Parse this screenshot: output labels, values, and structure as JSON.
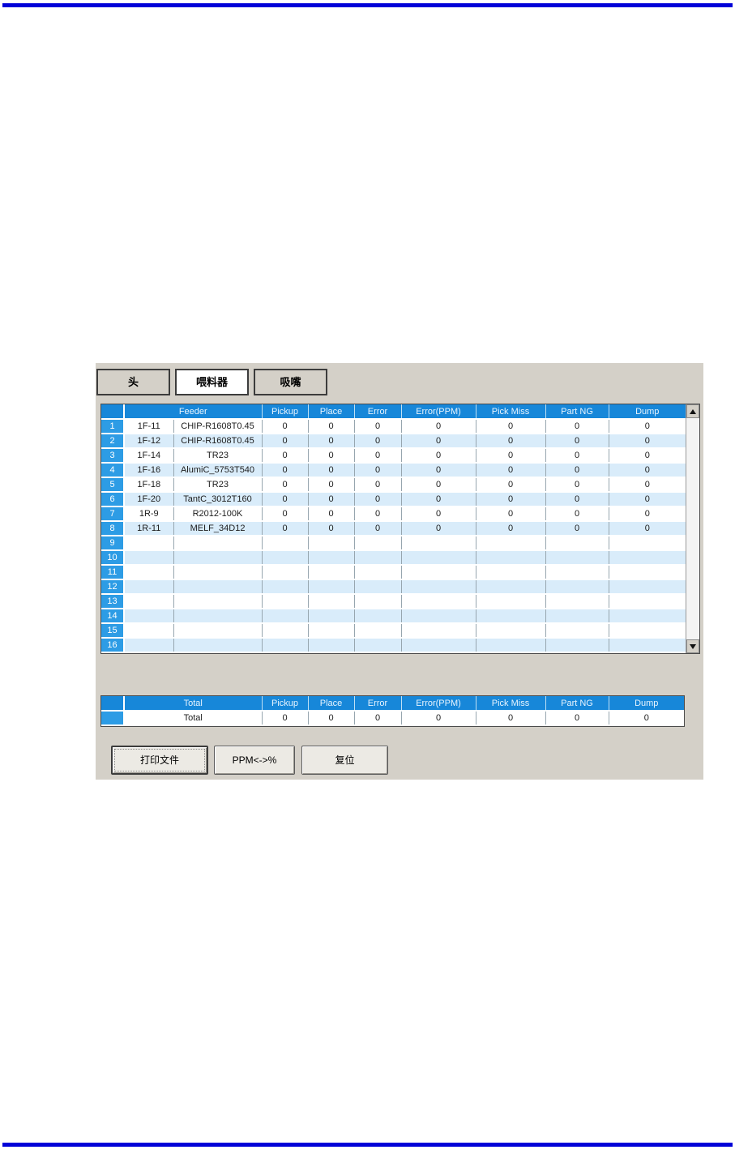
{
  "colors": {
    "page_rule": "#0101d8",
    "panel_bg": "#d4d0c8",
    "header_blue": "#1787d9",
    "row_number_blue": "#2d9ce5",
    "alt_row_blue": "#d9ecfa"
  },
  "tabs": [
    {
      "id": "head",
      "label": "头",
      "active": false
    },
    {
      "id": "feeder",
      "label": "喂料器",
      "active": true
    },
    {
      "id": "nozzle",
      "label": "吸嘴",
      "active": false
    }
  ],
  "feeder_table": {
    "columns": [
      "Feeder",
      "Pickup",
      "Place",
      "Error",
      "Error(PPM)",
      "Pick Miss",
      "Part NG",
      "Dump"
    ],
    "rows": [
      {
        "num": "1",
        "slot": "1F-11",
        "part": "CHIP-R1608T0.45",
        "values": [
          "0",
          "0",
          "0",
          "0",
          "0",
          "0",
          "0"
        ]
      },
      {
        "num": "2",
        "slot": "1F-12",
        "part": "CHIP-R1608T0.45",
        "values": [
          "0",
          "0",
          "0",
          "0",
          "0",
          "0",
          "0"
        ]
      },
      {
        "num": "3",
        "slot": "1F-14",
        "part": "TR23",
        "values": [
          "0",
          "0",
          "0",
          "0",
          "0",
          "0",
          "0"
        ]
      },
      {
        "num": "4",
        "slot": "1F-16",
        "part": "AlumiC_5753T540",
        "values": [
          "0",
          "0",
          "0",
          "0",
          "0",
          "0",
          "0"
        ]
      },
      {
        "num": "5",
        "slot": "1F-18",
        "part": "TR23",
        "values": [
          "0",
          "0",
          "0",
          "0",
          "0",
          "0",
          "0"
        ]
      },
      {
        "num": "6",
        "slot": "1F-20",
        "part": "TantC_3012T160",
        "values": [
          "0",
          "0",
          "0",
          "0",
          "0",
          "0",
          "0"
        ]
      },
      {
        "num": "7",
        "slot": "1R-9",
        "part": "R2012-100K",
        "values": [
          "0",
          "0",
          "0",
          "0",
          "0",
          "0",
          "0"
        ]
      },
      {
        "num": "8",
        "slot": "1R-11",
        "part": "MELF_34D12",
        "values": [
          "0",
          "0",
          "0",
          "0",
          "0",
          "0",
          "0"
        ]
      },
      {
        "num": "9",
        "slot": "",
        "part": "",
        "values": [
          "",
          "",
          "",
          "",
          "",
          "",
          ""
        ]
      },
      {
        "num": "10",
        "slot": "",
        "part": "",
        "values": [
          "",
          "",
          "",
          "",
          "",
          "",
          ""
        ]
      },
      {
        "num": "11",
        "slot": "",
        "part": "",
        "values": [
          "",
          "",
          "",
          "",
          "",
          "",
          ""
        ]
      },
      {
        "num": "12",
        "slot": "",
        "part": "",
        "values": [
          "",
          "",
          "",
          "",
          "",
          "",
          ""
        ]
      },
      {
        "num": "13",
        "slot": "",
        "part": "",
        "values": [
          "",
          "",
          "",
          "",
          "",
          "",
          ""
        ]
      },
      {
        "num": "14",
        "slot": "",
        "part": "",
        "values": [
          "",
          "",
          "",
          "",
          "",
          "",
          ""
        ]
      },
      {
        "num": "15",
        "slot": "",
        "part": "",
        "values": [
          "",
          "",
          "",
          "",
          "",
          "",
          ""
        ]
      },
      {
        "num": "16",
        "slot": "",
        "part": "",
        "values": [
          "",
          "",
          "",
          "",
          "",
          "",
          ""
        ]
      }
    ]
  },
  "total_table": {
    "columns": [
      "Total",
      "Pickup",
      "Place",
      "Error",
      "Error(PPM)",
      "Pick Miss",
      "Part NG",
      "Dump"
    ],
    "row": {
      "label": "Total",
      "values": [
        "0",
        "0",
        "0",
        "0",
        "0",
        "0",
        "0"
      ]
    }
  },
  "buttons": [
    {
      "id": "print",
      "label": "打印文件"
    },
    {
      "id": "ppm-toggle",
      "label": "PPM<->%"
    },
    {
      "id": "reset",
      "label": "复位"
    }
  ],
  "scrollbar": {
    "up_icon": "triangle-up",
    "down_icon": "triangle-down"
  }
}
